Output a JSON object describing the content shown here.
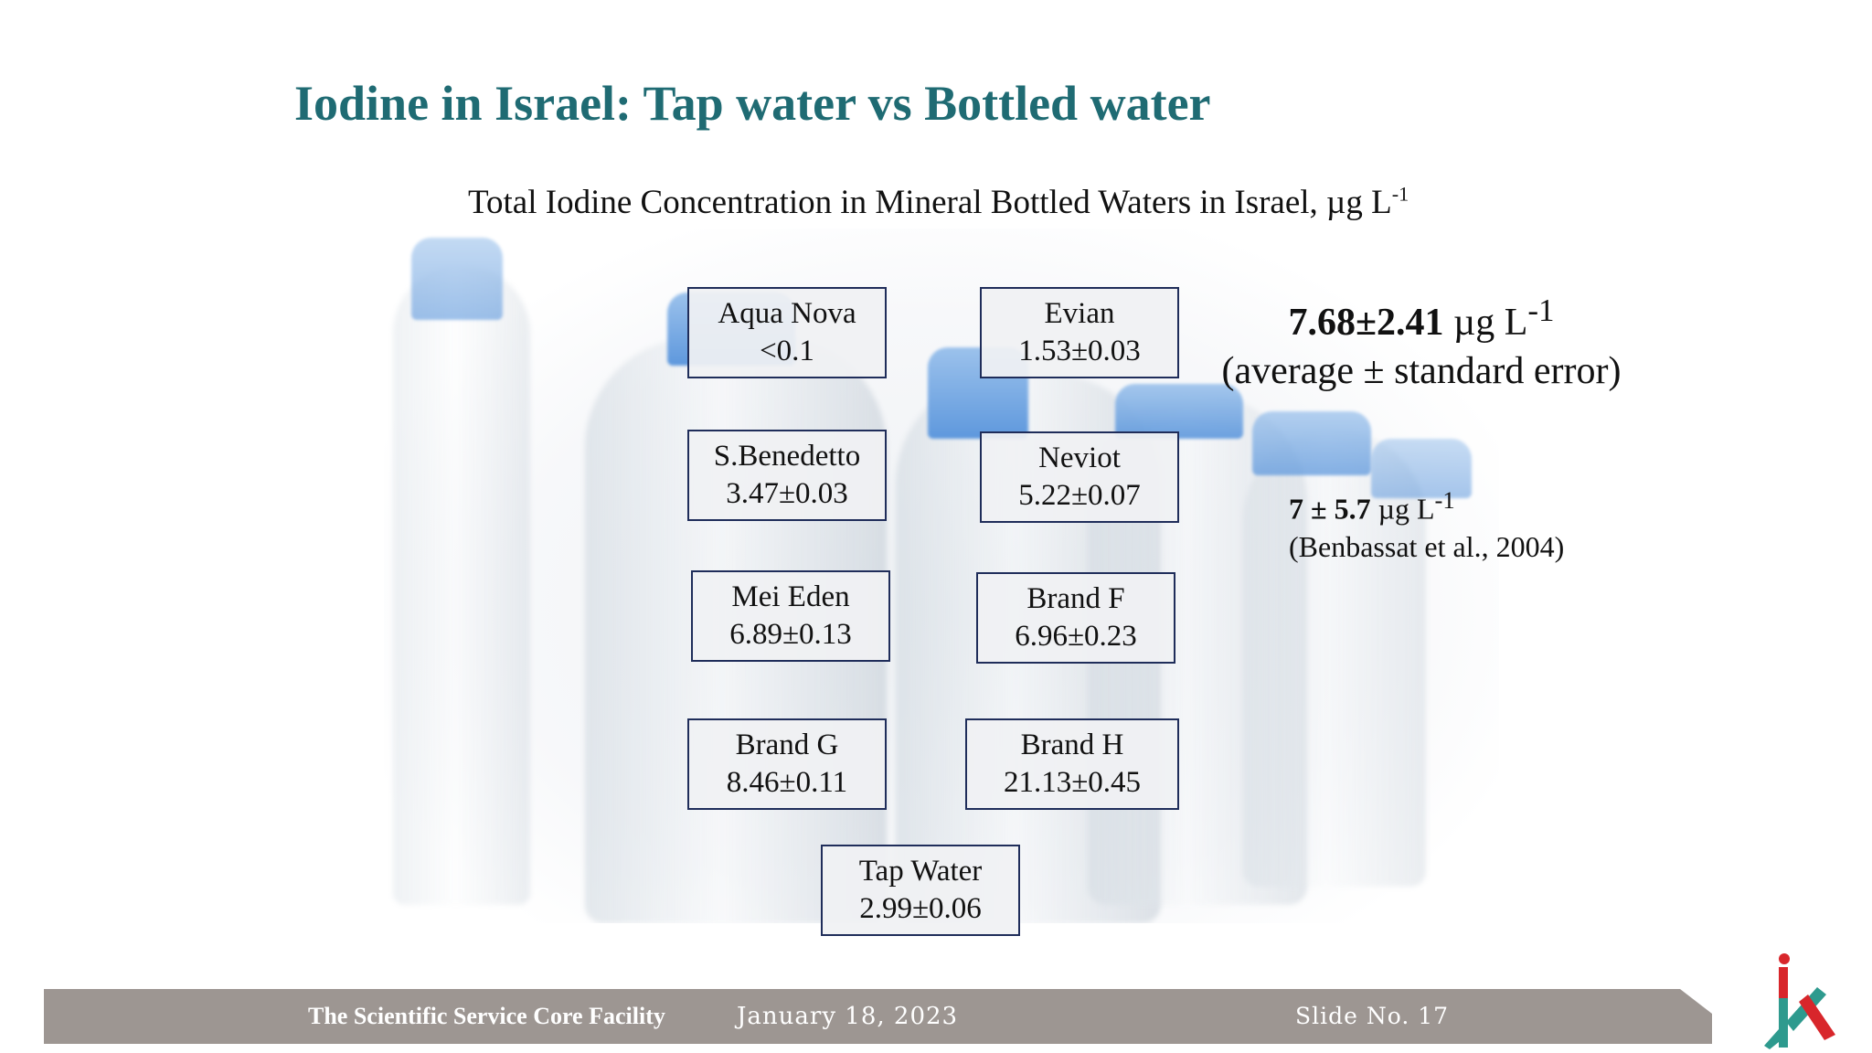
{
  "slide": {
    "title": "Iodine in Israel: Tap water vs Bottled water",
    "subtitle_text": "Total Iodine Concentration in Mineral Bottled Waters in Israel, µg L",
    "subtitle_sup": "-1"
  },
  "samples": [
    {
      "name": "Aqua Nova",
      "value": "<0.1"
    },
    {
      "name": "Evian",
      "value": "1.53±0.03"
    },
    {
      "name": "S.Benedetto",
      "value": "3.47±0.03"
    },
    {
      "name": "Neviot",
      "value": "5.22±0.07"
    },
    {
      "name": "Mei Eden",
      "value": "6.89±0.13"
    },
    {
      "name": "Brand F",
      "value": "6.96±0.23"
    },
    {
      "name": "Brand G",
      "value": "8.46±0.11"
    },
    {
      "name": "Brand H",
      "value": "21.13±0.45"
    },
    {
      "name": "Tap Water",
      "value": "2.99±0.06"
    }
  ],
  "average": {
    "value": "7.68±2.41",
    "unit": " µg L",
    "unit_sup": "-1",
    "caption": "(average ± standard error)"
  },
  "reference": {
    "value": "7 ± 5.7",
    "unit": " µg L",
    "unit_sup": "-1",
    "citation": "(Benbassat et al., 2004)"
  },
  "footer": {
    "organization": "The Scientific Service Core Facility",
    "date": "January 18, 2023",
    "slide_number": "Slide No. 17"
  },
  "colors": {
    "title": "#1f6b73",
    "box_border": "#1f2d5a",
    "footer_bar": "#9d9692",
    "bottle_cap": "#6aa2e2"
  },
  "icons": {
    "logo": "institute-logo"
  }
}
